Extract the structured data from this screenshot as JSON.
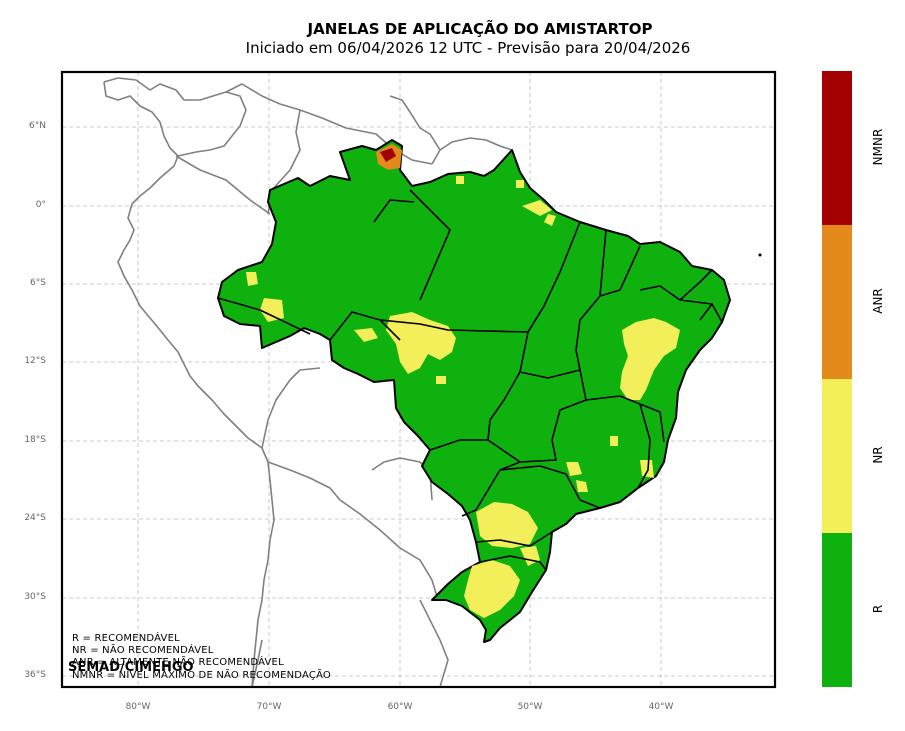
{
  "title": "JANELAS DE APLICAÇÃO DO AMISTARTOP",
  "subtitle": "Iniciado em 06/04/2026 12 UTC - Previsão para 20/04/2026",
  "lat_ticks": [
    "6°N",
    "0°",
    "6°S",
    "12°S",
    "18°S",
    "24°S",
    "30°S",
    "36°S"
  ],
  "lon_ticks": [
    "80°W",
    "70°W",
    "60°W",
    "50°W",
    "40°W"
  ],
  "legend_lines": [
    "R = RECOMENDÁVEL",
    "NR = NÃO RECOMENDÁVEL",
    "ANR = ALTAMENTE NÃO RECOMENDÁVEL",
    "NMNR = NÍVEL MÁXIMO DE NÃO RECOMENDAÇÃO"
  ],
  "credit": "SEMAD/CIMEHGO",
  "colorbar": [
    {
      "label": "NMNR",
      "color": "#a30000"
    },
    {
      "label": "ANR",
      "color": "#e38a1a"
    },
    {
      "label": "NR",
      "color": "#f2ef5a"
    },
    {
      "label": "R",
      "color": "#0fb10f"
    }
  ],
  "colors": {
    "recommended": "#0fb10f",
    "not_recommended": "#f2ef5a",
    "highly_not_recommended": "#e38a1a",
    "max_not_recommended": "#a30000",
    "coastline": "#808080",
    "border": "#000000",
    "grid": "#bbbbbb"
  }
}
